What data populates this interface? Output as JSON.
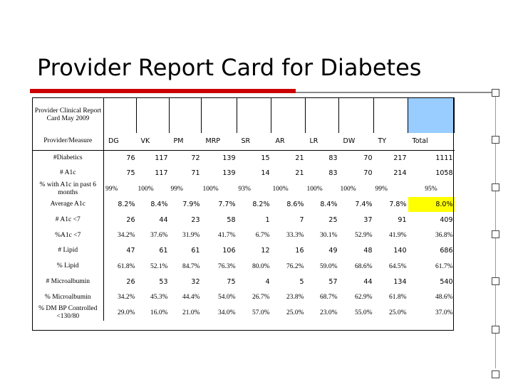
{
  "slide": {
    "title": "Provider Report Card for Diabetes"
  },
  "report": {
    "heading": "Provider Clinical Report Card May 2009",
    "measure_label": "Provider/Measure",
    "providers": [
      "DG",
      "VK",
      "PM",
      "MRP",
      "SR",
      "AR",
      "LR",
      "DW",
      "TY",
      "Total"
    ],
    "rows": [
      {
        "label": "#Diabetics",
        "values": [
          "76",
          "117",
          "72",
          "139",
          "15",
          "21",
          "83",
          "70",
          "217",
          "1111"
        ]
      },
      {
        "label": "# A1c",
        "values": [
          "75",
          "117",
          "71",
          "139",
          "14",
          "21",
          "83",
          "70",
          "214",
          "1058"
        ]
      },
      {
        "label": "% with A1c in past 6 months",
        "values": [
          "99%",
          "100%",
          "99%",
          "100%",
          "93%",
          "100%",
          "100%",
          "100%",
          "99%",
          "95%"
        ]
      },
      {
        "label": "Average A1c",
        "values": [
          "8.2%",
          "8.4%",
          "7.9%",
          "7.7%",
          "8.2%",
          "8.6%",
          "8.4%",
          "7.4%",
          "7.8%",
          "8.0%"
        ]
      },
      {
        "label": "# A1c <7",
        "values": [
          "26",
          "44",
          "23",
          "58",
          "1",
          "7",
          "25",
          "37",
          "91",
          "409"
        ]
      },
      {
        "label": "%A1c <7",
        "values": [
          "34.2%",
          "37.6%",
          "31.9%",
          "41.7%",
          "6.7%",
          "33.3%",
          "30.1%",
          "52.9%",
          "41.9%",
          "36.8%"
        ]
      },
      {
        "label": "# Lipid",
        "values": [
          "47",
          "61",
          "61",
          "106",
          "12",
          "16",
          "49",
          "48",
          "140",
          "686"
        ]
      },
      {
        "label": "% Lipid",
        "values": [
          "61.8%",
          "52.1%",
          "84.7%",
          "76.3%",
          "80.0%",
          "76.2%",
          "59.0%",
          "68.6%",
          "64.5%",
          "61.7%"
        ]
      },
      {
        "label": "# Microalbumin",
        "values": [
          "26",
          "53",
          "32",
          "75",
          "4",
          "5",
          "57",
          "44",
          "134",
          "540"
        ]
      },
      {
        "label": "% Microalbumin",
        "values": [
          "34.2%",
          "45.3%",
          "44.4%",
          "54.0%",
          "26.7%",
          "23.8%",
          "68.7%",
          "62.9%",
          "61.8%",
          "48.6%"
        ]
      },
      {
        "label": "% DM BP Controlled <130/80",
        "values": [
          "29.0%",
          "16.0%",
          "21.0%",
          "34.0%",
          "57.0%",
          "25.0%",
          "23.0%",
          "55.0%",
          "25.0%",
          "37.0%"
        ]
      }
    ]
  },
  "colors": {
    "accent_red": "#cc0000",
    "header_blue": "#99ccff",
    "highlight_yellow": "#ffff00"
  }
}
